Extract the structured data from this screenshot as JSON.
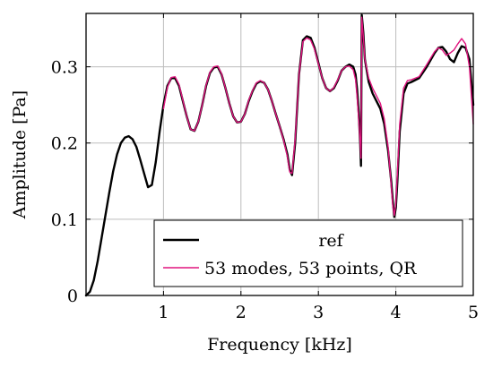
{
  "chart_data": {
    "type": "line",
    "title": "",
    "xlabel": "Frequency [kHz]",
    "ylabel": "Amplitude [Pa]",
    "xlim": [
      0,
      5
    ],
    "ylim": [
      0,
      0.37
    ],
    "xticks": [
      1,
      2,
      3,
      4,
      5
    ],
    "xtick_labels": [
      "1",
      "2",
      "3",
      "4",
      "5"
    ],
    "yticks": [
      0,
      0.1,
      0.2,
      0.3
    ],
    "ytick_labels": [
      "0",
      "0.1",
      "0.2",
      "0.3"
    ],
    "grid": true,
    "legend_position": "bottom-right",
    "series": [
      {
        "name": "ref",
        "color": "#000000",
        "x": [
          0.0,
          0.05,
          0.1,
          0.15,
          0.2,
          0.25,
          0.3,
          0.35,
          0.4,
          0.45,
          0.5,
          0.55,
          0.6,
          0.65,
          0.7,
          0.75,
          0.8,
          0.85,
          0.9,
          0.95,
          1.0,
          1.05,
          1.1,
          1.15,
          1.2,
          1.25,
          1.3,
          1.35,
          1.4,
          1.45,
          1.5,
          1.55,
          1.6,
          1.65,
          1.7,
          1.75,
          1.8,
          1.85,
          1.9,
          1.95,
          2.0,
          2.05,
          2.1,
          2.15,
          2.2,
          2.25,
          2.3,
          2.35,
          2.4,
          2.45,
          2.5,
          2.55,
          2.6,
          2.63,
          2.66,
          2.7,
          2.75,
          2.8,
          2.85,
          2.9,
          2.95,
          3.0,
          3.05,
          3.1,
          3.15,
          3.2,
          3.25,
          3.3,
          3.35,
          3.4,
          3.45,
          3.48,
          3.5,
          3.52,
          3.54,
          3.55,
          3.56,
          3.58,
          3.6,
          3.65,
          3.7,
          3.75,
          3.8,
          3.85,
          3.9,
          3.94,
          3.96,
          3.98,
          4.0,
          4.02,
          4.05,
          4.1,
          4.15,
          4.2,
          4.3,
          4.4,
          4.5,
          4.55,
          4.6,
          4.65,
          4.7,
          4.75,
          4.8,
          4.85,
          4.9,
          4.95,
          5.0
        ],
        "y": [
          0.0,
          0.005,
          0.02,
          0.045,
          0.075,
          0.105,
          0.135,
          0.163,
          0.185,
          0.2,
          0.207,
          0.209,
          0.205,
          0.195,
          0.178,
          0.16,
          0.142,
          0.145,
          0.175,
          0.215,
          0.25,
          0.275,
          0.285,
          0.285,
          0.275,
          0.255,
          0.235,
          0.218,
          0.216,
          0.228,
          0.25,
          0.275,
          0.292,
          0.299,
          0.3,
          0.29,
          0.272,
          0.252,
          0.235,
          0.227,
          0.228,
          0.238,
          0.255,
          0.268,
          0.278,
          0.281,
          0.279,
          0.27,
          0.255,
          0.238,
          0.222,
          0.205,
          0.185,
          0.165,
          0.158,
          0.2,
          0.29,
          0.335,
          0.34,
          0.338,
          0.325,
          0.305,
          0.285,
          0.272,
          0.268,
          0.272,
          0.282,
          0.295,
          0.3,
          0.303,
          0.3,
          0.29,
          0.27,
          0.24,
          0.2,
          0.17,
          0.368,
          0.345,
          0.31,
          0.28,
          0.265,
          0.255,
          0.245,
          0.225,
          0.19,
          0.15,
          0.125,
          0.103,
          0.115,
          0.15,
          0.215,
          0.265,
          0.278,
          0.28,
          0.285,
          0.3,
          0.318,
          0.325,
          0.326,
          0.32,
          0.31,
          0.306,
          0.318,
          0.327,
          0.325,
          0.31,
          0.25
        ]
      },
      {
        "name": "53 modes, 53 points, QR",
        "color": "#e0157f",
        "x": [
          1.0,
          1.05,
          1.1,
          1.15,
          1.2,
          1.25,
          1.3,
          1.35,
          1.4,
          1.45,
          1.5,
          1.55,
          1.6,
          1.65,
          1.7,
          1.75,
          1.8,
          1.85,
          1.9,
          1.95,
          2.0,
          2.05,
          2.1,
          2.15,
          2.2,
          2.25,
          2.3,
          2.35,
          2.4,
          2.45,
          2.5,
          2.55,
          2.6,
          2.63,
          2.66,
          2.7,
          2.75,
          2.8,
          2.85,
          2.9,
          2.95,
          3.0,
          3.05,
          3.1,
          3.15,
          3.2,
          3.25,
          3.3,
          3.35,
          3.4,
          3.45,
          3.48,
          3.5,
          3.52,
          3.54,
          3.55,
          3.56,
          3.58,
          3.6,
          3.65,
          3.7,
          3.75,
          3.8,
          3.85,
          3.9,
          3.94,
          3.96,
          3.98,
          4.0,
          4.02,
          4.05,
          4.1,
          4.15,
          4.2,
          4.3,
          4.4,
          4.5,
          4.55,
          4.6,
          4.65,
          4.7,
          4.75,
          4.8,
          4.85,
          4.9,
          4.95,
          5.0
        ],
        "y": [
          0.245,
          0.273,
          0.286,
          0.287,
          0.277,
          0.256,
          0.235,
          0.218,
          0.216,
          0.228,
          0.25,
          0.276,
          0.293,
          0.3,
          0.301,
          0.291,
          0.272,
          0.252,
          0.235,
          0.227,
          0.228,
          0.238,
          0.256,
          0.269,
          0.279,
          0.282,
          0.279,
          0.27,
          0.255,
          0.238,
          0.222,
          0.204,
          0.182,
          0.162,
          0.16,
          0.205,
          0.29,
          0.333,
          0.338,
          0.335,
          0.323,
          0.304,
          0.285,
          0.272,
          0.268,
          0.273,
          0.283,
          0.295,
          0.3,
          0.301,
          0.296,
          0.283,
          0.26,
          0.232,
          0.2,
          0.18,
          0.365,
          0.34,
          0.31,
          0.285,
          0.272,
          0.262,
          0.252,
          0.232,
          0.195,
          0.145,
          0.118,
          0.105,
          0.12,
          0.16,
          0.225,
          0.272,
          0.282,
          0.283,
          0.287,
          0.303,
          0.32,
          0.325,
          0.322,
          0.315,
          0.318,
          0.322,
          0.33,
          0.337,
          0.33,
          0.3,
          0.225
        ]
      }
    ]
  }
}
